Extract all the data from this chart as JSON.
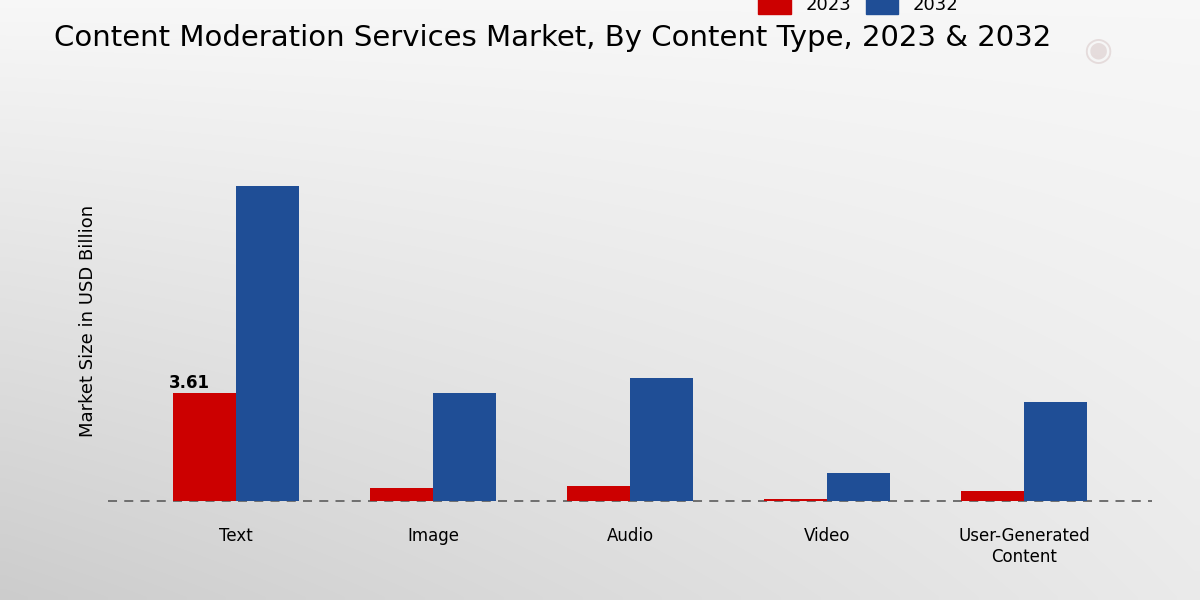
{
  "title": "Content Moderation Services Market, By Content Type, 2023 & 2032",
  "ylabel": "Market Size in USD Billion",
  "categories": [
    "Text",
    "Image",
    "Audio",
    "Video",
    "User-Generated\nContent"
  ],
  "values_2023": [
    3.61,
    0.42,
    0.5,
    0.08,
    0.35
  ],
  "values_2032": [
    10.5,
    3.6,
    4.1,
    0.95,
    3.3
  ],
  "color_2023": "#cc0000",
  "color_2032": "#1f4e96",
  "annotation_text": "3.61",
  "annotation_category_index": 0,
  "legend_labels": [
    "2023",
    "2032"
  ],
  "bar_width": 0.32,
  "title_fontsize": 21,
  "axis_label_fontsize": 13,
  "tick_fontsize": 12,
  "legend_fontsize": 13,
  "ylim_max": 12.5
}
